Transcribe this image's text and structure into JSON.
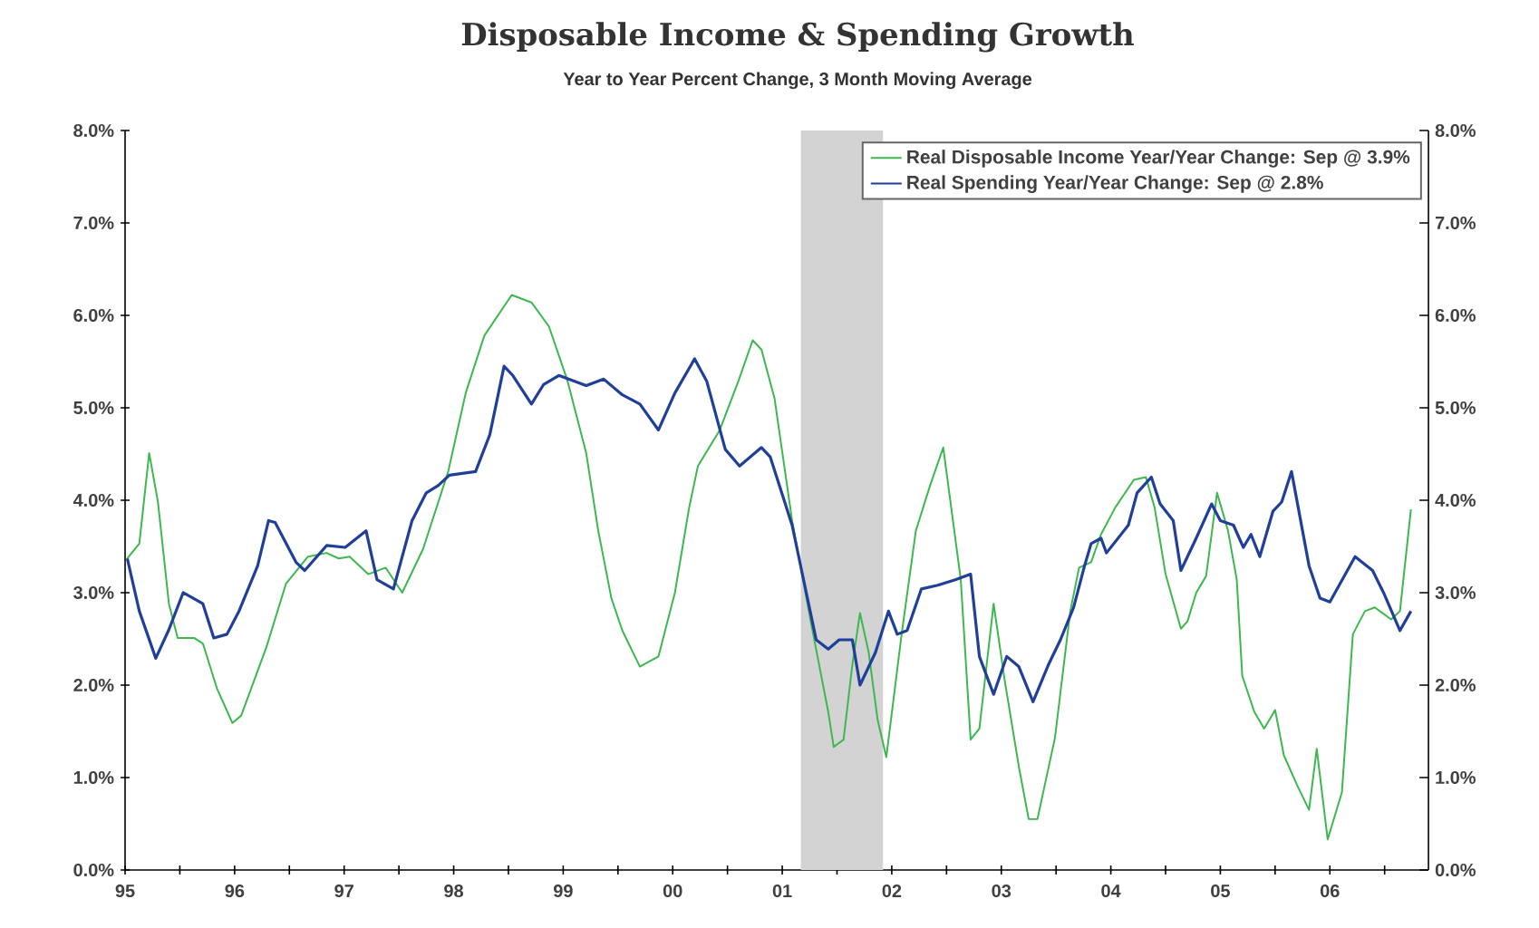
{
  "chart_data": {
    "type": "line",
    "title": "Disposable Income & Spending Growth",
    "subtitle": "Year to Year Percent Change, 3 Month Moving Average",
    "xlim": [
      1995,
      2006.9
    ],
    "xticks": [
      {
        "value": 1995,
        "label": "95"
      },
      {
        "value": 1995.5,
        "label": null
      },
      {
        "value": 1996,
        "label": "96"
      },
      {
        "value": 1996.5,
        "label": null
      },
      {
        "value": 1997,
        "label": "97"
      },
      {
        "value": 1997.5,
        "label": null
      },
      {
        "value": 1998,
        "label": "98"
      },
      {
        "value": 1998.5,
        "label": null
      },
      {
        "value": 1999,
        "label": "99"
      },
      {
        "value": 1999.5,
        "label": null
      },
      {
        "value": 2000,
        "label": "00"
      },
      {
        "value": 2000.5,
        "label": null
      },
      {
        "value": 2001,
        "label": "01"
      },
      {
        "value": 2001.5,
        "label": null
      },
      {
        "value": 2002,
        "label": "02"
      },
      {
        "value": 2002.5,
        "label": null
      },
      {
        "value": 2003,
        "label": "03"
      },
      {
        "value": 2003.5,
        "label": null
      },
      {
        "value": 2004,
        "label": "04"
      },
      {
        "value": 2004.5,
        "label": null
      },
      {
        "value": 2005,
        "label": "05"
      },
      {
        "value": 2005.5,
        "label": null
      },
      {
        "value": 2006,
        "label": "06"
      },
      {
        "value": 2006.5,
        "label": null
      }
    ],
    "ylim": [
      0,
      8
    ],
    "yticks": [
      {
        "value": 0,
        "label": "0.0%"
      },
      {
        "value": 1,
        "label": "1.0%"
      },
      {
        "value": 2,
        "label": "2.0%"
      },
      {
        "value": 3,
        "label": "3.0%"
      },
      {
        "value": 4,
        "label": "4.0%"
      },
      {
        "value": 5,
        "label": "5.0%"
      },
      {
        "value": 6,
        "label": "6.0%"
      },
      {
        "value": 7,
        "label": "7.0%"
      },
      {
        "value": 8,
        "label": "8.0%"
      }
    ],
    "y2lim": [
      0,
      8
    ],
    "y2ticks": [
      {
        "value": 0,
        "label": "0.0%"
      },
      {
        "value": 1,
        "label": "1.0%"
      },
      {
        "value": 2,
        "label": "2.0%"
      },
      {
        "value": 3,
        "label": "3.0%"
      },
      {
        "value": 4,
        "label": "4.0%"
      },
      {
        "value": 5,
        "label": "5.0%"
      },
      {
        "value": 6,
        "label": "6.0%"
      },
      {
        "value": 7,
        "label": "7.0%"
      },
      {
        "value": 8,
        "label": "8.0%"
      }
    ],
    "bands": [
      {
        "axis": "x",
        "from": 2001.17,
        "to": 2001.92,
        "color": "#d3d3d3"
      }
    ],
    "legend": "top right",
    "grid": false,
    "series": [
      {
        "name": "Real Disposable Income Year/Year Change: Sep @ 3.9%",
        "color": "#3cb84e",
        "x": [
          1995.02,
          1995.13,
          1995.22,
          1995.3,
          1995.4,
          1995.48,
          1995.63,
          1995.71,
          1995.84,
          1995.98,
          1996.06,
          1996.29,
          1996.47,
          1996.67,
          1996.84,
          1996.95,
          1997.05,
          1997.22,
          1997.38,
          1997.53,
          1997.72,
          1997.95,
          1998.11,
          1998.28,
          1998.53,
          1998.71,
          1998.87,
          1999.04,
          1999.21,
          1999.32,
          1999.44,
          1999.54,
          1999.7,
          1999.87,
          2000.02,
          2000.15,
          2000.23,
          2000.43,
          2000.6,
          2000.73,
          2000.81,
          2000.93,
          2001.09,
          2001.26,
          2001.42,
          2001.47,
          2001.56,
          2001.64,
          2001.71,
          2001.79,
          2001.87,
          2001.95,
          2002.09,
          2002.22,
          2002.35,
          2002.47,
          2002.63,
          2002.72,
          2002.8,
          2002.93,
          2003.03,
          2003.16,
          2003.25,
          2003.33,
          2003.49,
          2003.63,
          2003.71,
          2003.82,
          2003.91,
          2004.04,
          2004.21,
          2004.32,
          2004.4,
          2004.5,
          2004.64,
          2004.7,
          2004.78,
          2004.87,
          2004.97,
          2005.07,
          2005.15,
          2005.2,
          2005.31,
          2005.4,
          2005.5,
          2005.58,
          2005.7,
          2005.81,
          2005.88,
          2005.98,
          2006.11,
          2006.21,
          2006.32,
          2006.41,
          2006.56,
          2006.64,
          2006.74
        ],
        "values": [
          3.37,
          3.53,
          4.51,
          3.98,
          2.88,
          2.51,
          2.51,
          2.45,
          1.96,
          1.59,
          1.67,
          2.41,
          3.1,
          3.39,
          3.43,
          3.37,
          3.39,
          3.2,
          3.27,
          3.0,
          3.47,
          4.31,
          5.16,
          5.78,
          6.22,
          6.14,
          5.88,
          5.29,
          4.51,
          3.67,
          2.94,
          2.59,
          2.2,
          2.31,
          3.0,
          3.92,
          4.37,
          4.76,
          5.29,
          5.73,
          5.63,
          5.1,
          3.78,
          2.69,
          1.71,
          1.33,
          1.41,
          2.22,
          2.78,
          2.35,
          1.63,
          1.22,
          2.55,
          3.67,
          4.16,
          4.57,
          3.14,
          1.41,
          1.53,
          2.88,
          2.06,
          1.12,
          0.55,
          0.55,
          1.43,
          2.8,
          3.27,
          3.33,
          3.63,
          3.92,
          4.22,
          4.25,
          3.92,
          3.2,
          2.61,
          2.69,
          3.0,
          3.18,
          4.08,
          3.67,
          3.14,
          2.1,
          1.71,
          1.53,
          1.73,
          1.24,
          0.92,
          0.65,
          1.31,
          0.33,
          0.84,
          2.55,
          2.8,
          2.84,
          2.71,
          2.8,
          3.9
        ]
      },
      {
        "name": "Real Spending Year/Year Change: Sep @ 2.8%",
        "color": "#1f3f99",
        "x": [
          1995.02,
          1995.13,
          1995.28,
          1995.4,
          1995.53,
          1995.71,
          1995.81,
          1995.93,
          1996.04,
          1996.21,
          1996.31,
          1996.37,
          1996.56,
          1996.64,
          1996.84,
          1997.01,
          1997.2,
          1997.3,
          1997.45,
          1997.62,
          1997.75,
          1997.86,
          1997.96,
          1998.2,
          1998.33,
          1998.46,
          1998.54,
          1998.71,
          1998.82,
          1998.96,
          1999.21,
          1999.37,
          1999.54,
          1999.7,
          1999.87,
          2000.02,
          2000.2,
          2000.31,
          2000.48,
          2000.61,
          2000.81,
          2000.89,
          2001.09,
          2001.31,
          2001.42,
          2001.52,
          2001.64,
          2001.71,
          2001.85,
          2001.97,
          2002.05,
          2002.14,
          2002.27,
          2002.42,
          2002.58,
          2002.72,
          2002.8,
          2002.93,
          2003.05,
          2003.16,
          2003.29,
          2003.43,
          2003.54,
          2003.66,
          2003.76,
          2003.82,
          2003.91,
          2003.96,
          2004.16,
          2004.24,
          2004.37,
          2004.45,
          2004.57,
          2004.64,
          2004.78,
          2004.92,
          2005.0,
          2005.12,
          2005.21,
          2005.28,
          2005.36,
          2005.48,
          2005.56,
          2005.65,
          2005.81,
          2005.91,
          2006.0,
          2006.23,
          2006.39,
          2006.49,
          2006.64,
          2006.74
        ],
        "values": [
          3.37,
          2.8,
          2.29,
          2.6,
          3.0,
          2.88,
          2.51,
          2.55,
          2.8,
          3.29,
          3.78,
          3.76,
          3.33,
          3.24,
          3.51,
          3.49,
          3.67,
          3.14,
          3.04,
          3.78,
          4.08,
          4.16,
          4.27,
          4.31,
          4.71,
          5.45,
          5.35,
          5.04,
          5.25,
          5.35,
          5.24,
          5.31,
          5.14,
          5.04,
          4.76,
          5.16,
          5.53,
          5.29,
          4.55,
          4.37,
          4.57,
          4.47,
          3.73,
          2.49,
          2.39,
          2.49,
          2.49,
          2.0,
          2.35,
          2.8,
          2.55,
          2.59,
          3.04,
          3.08,
          3.14,
          3.2,
          2.31,
          1.9,
          2.31,
          2.2,
          1.82,
          2.22,
          2.49,
          2.84,
          3.29,
          3.53,
          3.59,
          3.43,
          3.73,
          4.08,
          4.25,
          3.96,
          3.78,
          3.24,
          3.59,
          3.96,
          3.78,
          3.73,
          3.49,
          3.63,
          3.39,
          3.88,
          3.98,
          4.31,
          3.29,
          2.94,
          2.9,
          3.39,
          3.24,
          3.0,
          2.59,
          2.8
        ]
      }
    ]
  }
}
